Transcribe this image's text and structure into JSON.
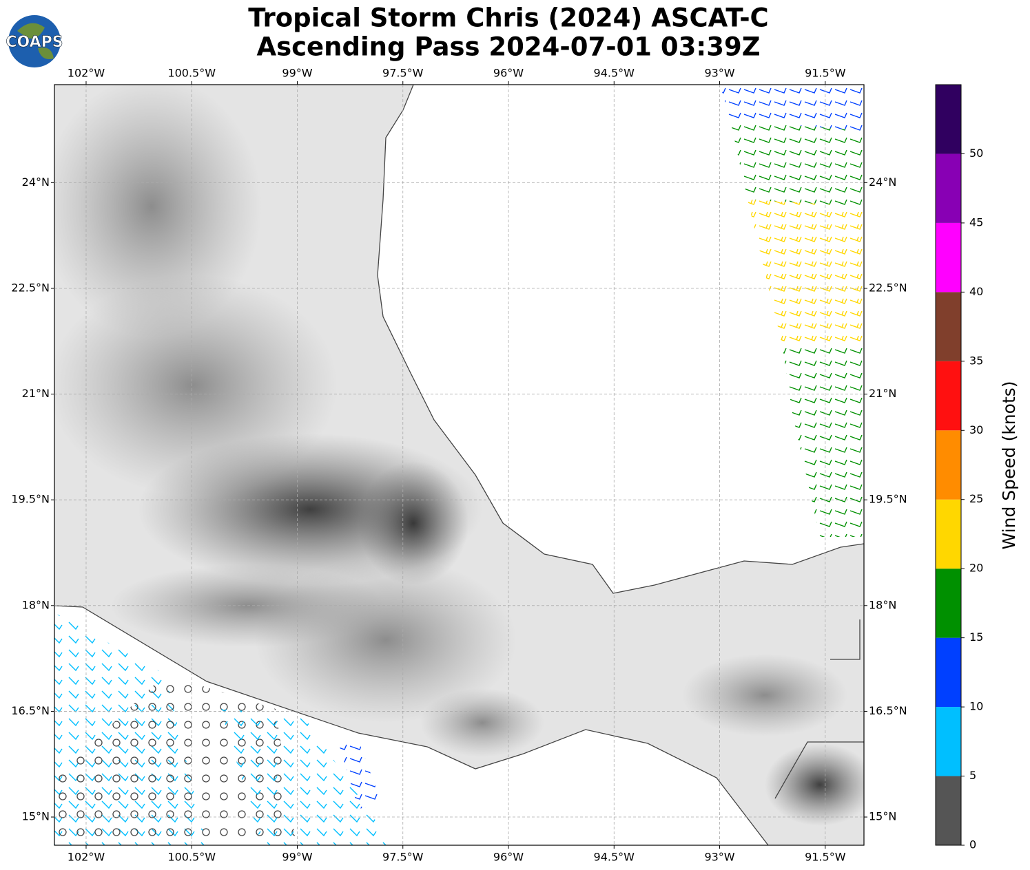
{
  "header": {
    "title": [
      "Tropical Storm Chris (2024) ASCAT-C",
      "Ascending Pass 2024-07-01 03:39Z"
    ],
    "logo": "COAPS"
  },
  "map": {
    "xlim": [
      -102.45,
      -90.95
    ],
    "ylim": [
      14.6,
      25.39
    ],
    "xticks": [
      {
        "value": -102,
        "label": "102°W"
      },
      {
        "value": -100.5,
        "label": "100.5°W"
      },
      {
        "value": -99,
        "label": "99°W"
      },
      {
        "value": -97.5,
        "label": "97.5°W"
      },
      {
        "value": -96,
        "label": "96°W"
      },
      {
        "value": -94.5,
        "label": "94.5°W"
      },
      {
        "value": -93,
        "label": "93°W"
      },
      {
        "value": -91.5,
        "label": "91.5°W"
      }
    ],
    "yticks": [
      {
        "value": 15,
        "label": "15°N"
      },
      {
        "value": 16.5,
        "label": "16.5°N"
      },
      {
        "value": 18,
        "label": "18°N"
      },
      {
        "value": 19.5,
        "label": "19.5°N"
      },
      {
        "value": 21,
        "label": "21°N"
      },
      {
        "value": 22.5,
        "label": "22.5°N"
      },
      {
        "value": 24,
        "label": "24°N"
      }
    ],
    "grid": true
  },
  "colorbar": {
    "label": "Wind Speed (knots)",
    "lim": [
      0,
      55
    ],
    "ticks": [
      0,
      5,
      10,
      15,
      20,
      25,
      30,
      35,
      40,
      45,
      50
    ],
    "bins": [
      0,
      5,
      10,
      15,
      20,
      25,
      30,
      35,
      40,
      45,
      50,
      55
    ],
    "colors": [
      "#555555",
      "#00bfff",
      "#0040ff",
      "#009000",
      "#ffd700",
      "#ff8c00",
      "#ff1010",
      "#803f2c",
      "#ff00ff",
      "#8800b4",
      "#300060"
    ]
  }
}
